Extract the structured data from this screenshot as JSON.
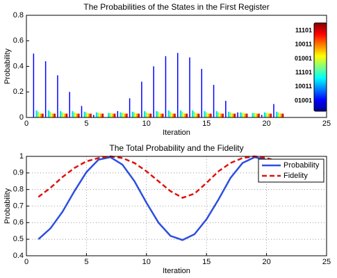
{
  "chart_data": [
    {
      "type": "bar",
      "title": "The Probabilities of the States in the First Register",
      "xlabel": "Iteration",
      "ylabel": "Probability",
      "x": [
        0.6,
        1.6,
        2.6,
        3.6,
        4.6,
        5.6,
        6.6,
        7.6,
        8.6,
        9.6,
        10.6,
        11.6,
        12.6,
        13.6,
        14.6,
        15.6,
        16.6,
        17.6,
        18.6,
        19.6,
        20.6
      ],
      "series": [
        {
          "color": "#0000ff",
          "values": [
            0.5,
            0.44,
            0.33,
            0.2,
            0.09,
            0.02,
            0.0,
            0.05,
            0.15,
            0.28,
            0.4,
            0.48,
            0.505,
            0.47,
            0.38,
            0.255,
            0.13,
            0.04,
            0.0,
            0.02,
            0.105
          ]
        },
        {
          "color": "#00e0ff",
          "values": [
            0.055,
            0.055,
            0.05,
            0.05,
            0.045,
            0.04,
            0.035,
            0.04,
            0.045,
            0.05,
            0.05,
            0.055,
            0.055,
            0.055,
            0.05,
            0.05,
            0.045,
            0.04,
            0.035,
            0.04,
            0.045
          ]
        },
        {
          "color": "#80ff80",
          "values": [
            0.045,
            0.045,
            0.04,
            0.04,
            0.04,
            0.035,
            0.035,
            0.035,
            0.04,
            0.04,
            0.045,
            0.045,
            0.045,
            0.045,
            0.04,
            0.04,
            0.04,
            0.035,
            0.035,
            0.035,
            0.04
          ]
        },
        {
          "color": "#ffff00",
          "values": [
            0.035,
            0.035,
            0.035,
            0.035,
            0.035,
            0.035,
            0.035,
            0.035,
            0.035,
            0.035,
            0.035,
            0.035,
            0.035,
            0.035,
            0.035,
            0.035,
            0.035,
            0.035,
            0.035,
            0.035,
            0.035
          ]
        },
        {
          "color": "#ff8000",
          "values": [
            0.03,
            0.03,
            0.03,
            0.03,
            0.03,
            0.03,
            0.03,
            0.03,
            0.03,
            0.03,
            0.03,
            0.03,
            0.03,
            0.03,
            0.03,
            0.03,
            0.03,
            0.03,
            0.03,
            0.03,
            0.03
          ]
        },
        {
          "color": "#e00000",
          "values": [
            0.03,
            0.03,
            0.03,
            0.03,
            0.03,
            0.03,
            0.03,
            0.03,
            0.03,
            0.03,
            0.03,
            0.03,
            0.03,
            0.03,
            0.03,
            0.03,
            0.03,
            0.03,
            0.03,
            0.03,
            0.03
          ]
        }
      ],
      "xlim": [
        0,
        25
      ],
      "xticks": [
        0,
        5,
        10,
        15,
        20,
        25
      ],
      "ylim": [
        0,
        0.8
      ],
      "yticks": [
        0,
        0.2,
        0.4,
        0.6,
        0.8
      ],
      "grid": false,
      "colorbar_labels": [
        "11101",
        "10011",
        "01001",
        "11101",
        "10011",
        "01001"
      ]
    },
    {
      "type": "line",
      "title": "The Total Probability and the Fidelity",
      "xlabel": "Iteration",
      "ylabel": "Probability",
      "x": [
        1,
        2,
        3,
        4,
        5,
        6,
        7,
        8,
        9,
        10,
        11,
        12,
        13,
        14,
        15,
        16,
        17,
        18,
        19,
        20,
        21
      ],
      "series": [
        {
          "name": "Probability",
          "color": "#2b4fe0",
          "linestyle": "solid",
          "values": [
            0.5,
            0.565,
            0.665,
            0.79,
            0.905,
            0.98,
            0.995,
            0.95,
            0.85,
            0.72,
            0.6,
            0.52,
            0.495,
            0.53,
            0.62,
            0.74,
            0.87,
            0.96,
            0.995,
            0.98,
            0.9
          ]
        },
        {
          "name": "Fidelity",
          "color": "#e01010",
          "linestyle": "dashed",
          "values": [
            0.755,
            0.81,
            0.875,
            0.93,
            0.97,
            0.99,
            1.0,
            0.99,
            0.96,
            0.91,
            0.85,
            0.79,
            0.75,
            0.775,
            0.84,
            0.91,
            0.96,
            0.99,
            1.0,
            0.99,
            0.97
          ]
        }
      ],
      "xlim": [
        0,
        25
      ],
      "xticks": [
        0,
        5,
        10,
        15,
        20,
        25
      ],
      "ylim": [
        0.4,
        1
      ],
      "yticks": [
        0.4,
        0.5,
        0.6,
        0.7,
        0.8,
        0.9,
        1
      ],
      "grid": true,
      "legend": "upper right"
    }
  ]
}
